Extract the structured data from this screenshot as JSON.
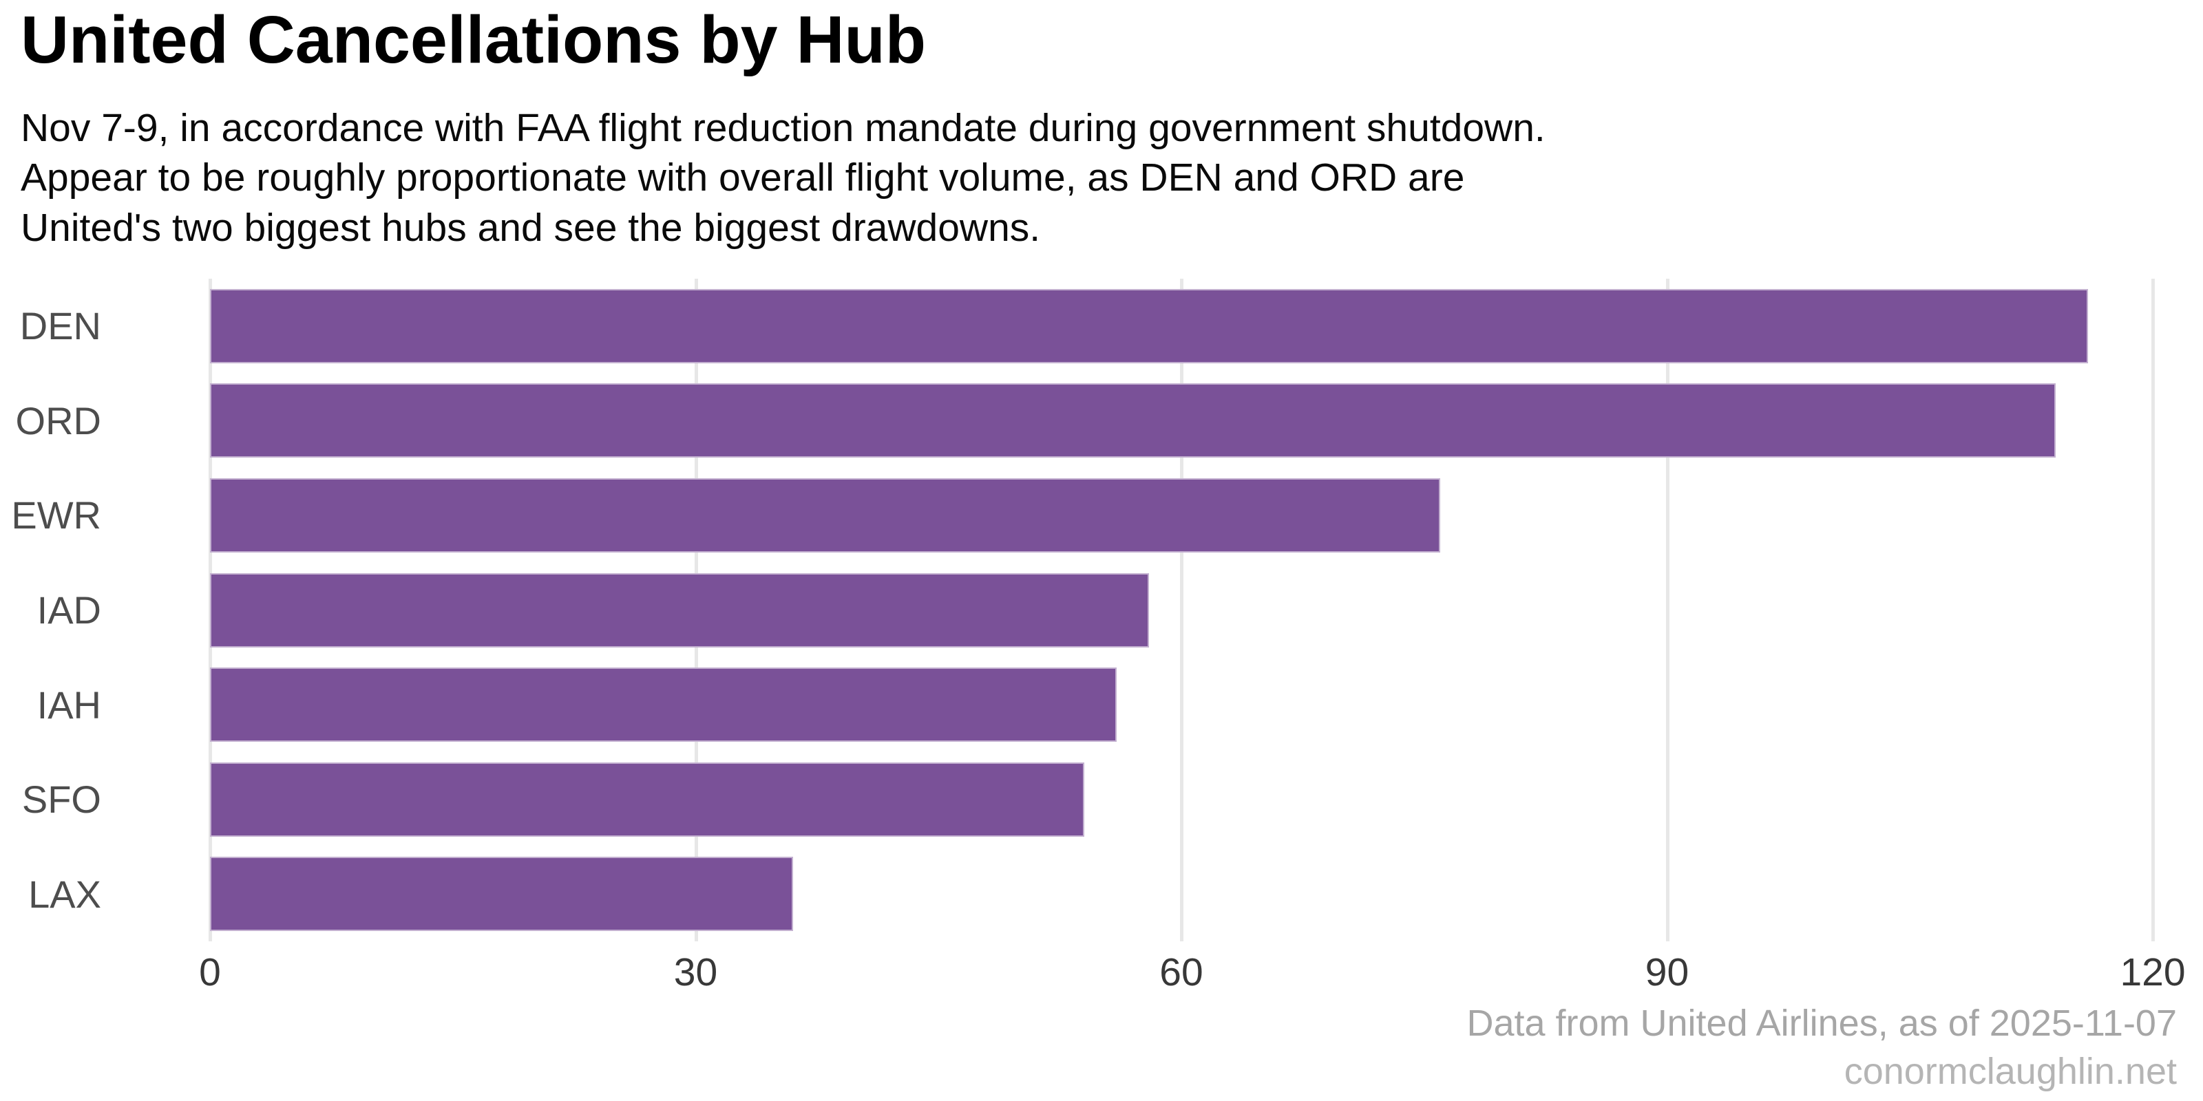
{
  "title": "United Cancellations by Hub",
  "subtitle_lines": [
    "Nov 7-9, in accordance with FAA flight reduction mandate during government shutdown.",
    "Appear to be roughly proportionate with overall flight volume, as DEN and ORD are",
    "United's two biggest hubs and see the biggest drawdowns."
  ],
  "footer": {
    "source": "Data from United Airlines, as of 2025-11-07",
    "site": "conormclaughlin.net"
  },
  "colors": {
    "title": "#000000",
    "bar": "#7a5198",
    "gridline": "#e7e7e7",
    "y_label": "#4d4d4d",
    "x_tick": "#383838",
    "footer_source": "#a6a6a6",
    "footer_site": "#b5b5b5"
  },
  "chart_data": {
    "type": "bar",
    "orientation": "horizontal",
    "title": "United Cancellations by Hub",
    "subtitle": "Nov 7-9, in accordance with FAA flight reduction mandate during government shutdown. Appear to be roughly proportionate with overall flight volume, as DEN and ORD are United's two biggest hubs and see the biggest drawdowns.",
    "categories": [
      "DEN",
      "ORD",
      "EWR",
      "IAD",
      "IAH",
      "SFO",
      "LAX"
    ],
    "values": [
      116,
      114,
      76,
      58,
      56,
      54,
      36
    ],
    "xlabel": "",
    "ylabel": "",
    "xlim": [
      0,
      120
    ],
    "xticks": [
      0,
      30,
      60,
      90,
      120
    ],
    "grid": "vertical-only",
    "legend": false,
    "bar_color": "#7a5198",
    "background": "#ffffff"
  }
}
